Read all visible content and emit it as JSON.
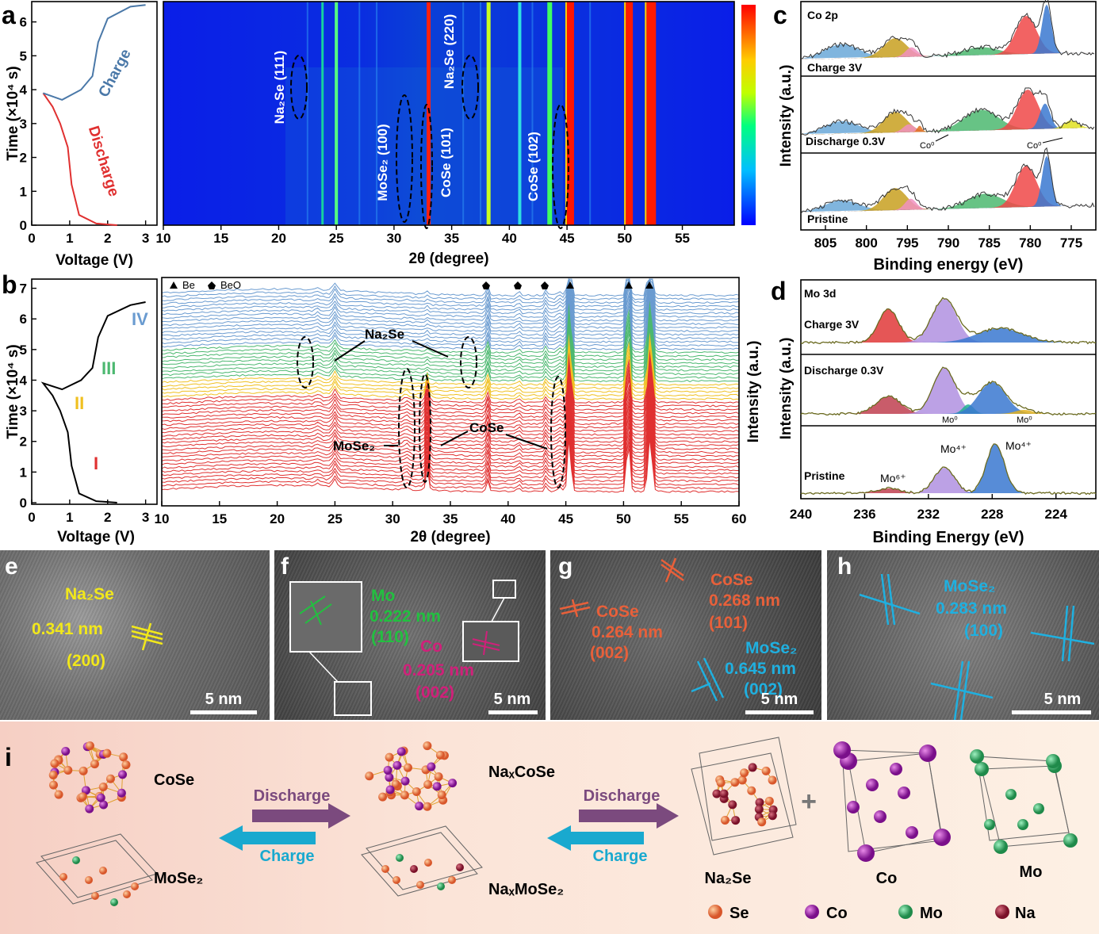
{
  "panel_letters": {
    "a": "a",
    "b": "b",
    "c": "c",
    "d": "d",
    "e": "e",
    "f": "f",
    "g": "g",
    "h": "h",
    "i": "i"
  },
  "panel_a": {
    "ylabel": "Time (×10⁴ s)",
    "xlabel_voltage": "Voltage (V)",
    "xlabel_2theta": "2θ (degree)",
    "label_charge": "Charge",
    "label_discharge": "Discharge",
    "y_ticks": [
      "0",
      "1",
      "2",
      "3",
      "4",
      "5",
      "6"
    ],
    "v_ticks": [
      "0",
      "1",
      "2",
      "3"
    ],
    "twotheta_ticks": [
      "10",
      "15",
      "20",
      "25",
      "30",
      "35",
      "40",
      "45",
      "50",
      "55"
    ],
    "peak_labels": [
      "Na₂Se (111)",
      "MoSe₂ (100)",
      "CoSe (101)",
      "Na₂Se (220)",
      "CoSe (102)"
    ]
  },
  "panel_b": {
    "ylabel": "Time (×10⁴ s)",
    "right_ylabel": "Intensity (a.u.)",
    "xlabel_voltage": "Voltage (V)",
    "xlabel_2theta": "2θ (degree)",
    "y_ticks": [
      "0",
      "1",
      "2",
      "3",
      "4",
      "5",
      "6",
      "7"
    ],
    "v_ticks": [
      "0",
      "1",
      "2",
      "3"
    ],
    "twotheta_ticks": [
      "10",
      "15",
      "20",
      "25",
      "30",
      "35",
      "40",
      "45",
      "50",
      "55",
      "60"
    ],
    "stages": [
      "I",
      "II",
      "III",
      "IV"
    ],
    "legend_be": "Be",
    "legend_beo": "BeO",
    "annot_na2se": "Na₂Se",
    "annot_mose2": "MoSe₂",
    "annot_cose": "CoSe"
  },
  "panel_c": {
    "title": "Co 2p",
    "ylabel": "Intensity (a.u.)",
    "xlabel": "Binding energy (eV)",
    "x_ticks": [
      "805",
      "800",
      "795",
      "790",
      "785",
      "780",
      "775"
    ],
    "rows": [
      "Charge 3V",
      "Discharge 0.3V",
      "Pristine"
    ],
    "co0": "Co⁰"
  },
  "panel_d": {
    "title": "Mo 3d",
    "ylabel": "Intensity (a.u.)",
    "xlabel": "Binding Energy (eV)",
    "x_ticks": [
      "240",
      "236",
      "232",
      "228",
      "224"
    ],
    "rows": [
      "Charge 3V",
      "Discharge 0.3V",
      "Pristine"
    ],
    "mo0": "Mo⁰",
    "mo4": "Mo⁴⁺",
    "mo6": "Mo⁶⁺"
  },
  "panel_e": {
    "phase": "Na₂Se",
    "d": "0.341 nm",
    "hkl": "(200)",
    "scale": "5 nm"
  },
  "panel_f": {
    "mo": "Mo",
    "mo_d": "0.222 nm",
    "mo_hkl": "(110)",
    "co": "Co",
    "co_d": "0.205 nm",
    "co_hkl": "(002)",
    "scale": "5 nm"
  },
  "panel_g": {
    "cose1": "CoSe",
    "cose1_d": "0.268 nm",
    "cose1_hkl": "(101)",
    "cose2": "CoSe",
    "cose2_d": "0.264 nm",
    "cose2_hkl": "(002)",
    "mose2": "MoSe₂",
    "mose2_d": "0.645 nm",
    "mose2_hkl": "(002)",
    "scale": "5 nm"
  },
  "panel_h": {
    "phase": "MoSe₂",
    "d": "0.283 nm",
    "hkl": "(100)",
    "scale": "5 nm"
  },
  "panel_i": {
    "cose": "CoSe",
    "mose2": "MoSe₂",
    "naxcose": "NaₓCoSe",
    "naxmose2": "NaₓMoSe₂",
    "discharge": "Discharge",
    "charge": "Charge",
    "plus": "+",
    "na2se": "Na₂Se",
    "co": "Co",
    "mo": "Mo",
    "legend": [
      "Se",
      "Co",
      "Mo",
      "Na"
    ]
  },
  "colors": {
    "charge": "#4a78a8",
    "discharge": "#e03030",
    "stage1": "#e03030",
    "stage2": "#f0c020",
    "stage3": "#4cb870",
    "stage4": "#6a9bd0"
  },
  "chart_data": [
    {
      "type": "line",
      "panel": "a-left",
      "ylabel": "Time (×10⁴ s)",
      "xlabel": "Voltage (V)",
      "xlim": [
        0,
        3.3
      ],
      "ylim": [
        0,
        6.6
      ],
      "series": [
        {
          "name": "Discharge",
          "x": [
            2.25,
            1.7,
            1.25,
            1.05,
            0.95,
            0.75,
            0.55,
            0.3
          ],
          "y": [
            0,
            0.05,
            0.3,
            1.2,
            2.3,
            3.0,
            3.5,
            3.9
          ]
        },
        {
          "name": "Charge",
          "x": [
            0.3,
            0.8,
            1.3,
            1.6,
            1.75,
            2.0,
            2.6,
            3.0
          ],
          "y": [
            3.9,
            3.7,
            4.0,
            4.4,
            5.4,
            6.1,
            6.45,
            6.5
          ]
        }
      ]
    },
    {
      "type": "heatmap",
      "panel": "a-right",
      "xlabel": "2θ (degree)",
      "xlim": [
        10,
        59.5
      ],
      "ylim": [
        0,
        6.6
      ],
      "peaks_deg": [
        23.8,
        25,
        33,
        38.2,
        40.9,
        43.5,
        45.3,
        50.4,
        52.3
      ],
      "annotations": [
        "Na₂Se (111)",
        "MoSe₂ (100)",
        "CoSe (101)",
        "Na₂Se (220)",
        "CoSe (102)"
      ]
    },
    {
      "type": "line",
      "panel": "b-left",
      "ylabel": "Time (×10⁴ s)",
      "xlabel": "Voltage (V)",
      "xlim": [
        0,
        3.3
      ],
      "ylim": [
        0,
        7.3
      ],
      "series": [
        {
          "x": [
            2.25,
            1.7,
            1.25,
            1.05,
            0.95,
            0.75,
            0.55,
            0.3,
            0.8,
            1.3,
            1.6,
            1.75,
            2.0,
            2.6,
            3.0
          ],
          "y": [
            0,
            0.05,
            0.3,
            1.2,
            2.3,
            3.0,
            3.5,
            3.9,
            3.7,
            4.0,
            4.4,
            5.4,
            6.1,
            6.45,
            6.55
          ]
        }
      ],
      "stages": [
        "I",
        "II",
        "III",
        "IV"
      ]
    },
    {
      "type": "line",
      "panel": "b-right",
      "xlabel": "2θ (degree)",
      "ylabel": "Intensity (a.u.)",
      "xlim": [
        10,
        60
      ],
      "peaks_deg": [
        25,
        33,
        38.2,
        40.9,
        43.3,
        45.3,
        50.4,
        52.3
      ],
      "legend": [
        "Be",
        "BeO"
      ]
    },
    {
      "type": "line",
      "panel": "c",
      "title": "Co 2p",
      "xlabel": "Binding energy (eV)",
      "ylabel": "Intensity (a.u.)",
      "xlim": [
        808,
        772
      ],
      "series": [
        {
          "name": "Charge 3V"
        },
        {
          "name": "Discharge 0.3V"
        },
        {
          "name": "Pristine"
        }
      ]
    },
    {
      "type": "line",
      "panel": "d",
      "title": "Mo 3d",
      "xlabel": "Binding Energy (eV)",
      "ylabel": "Intensity (a.u.)",
      "xlim": [
        240,
        221.5
      ],
      "series": [
        {
          "name": "Charge 3V"
        },
        {
          "name": "Discharge 0.3V"
        },
        {
          "name": "Pristine"
        }
      ]
    }
  ]
}
